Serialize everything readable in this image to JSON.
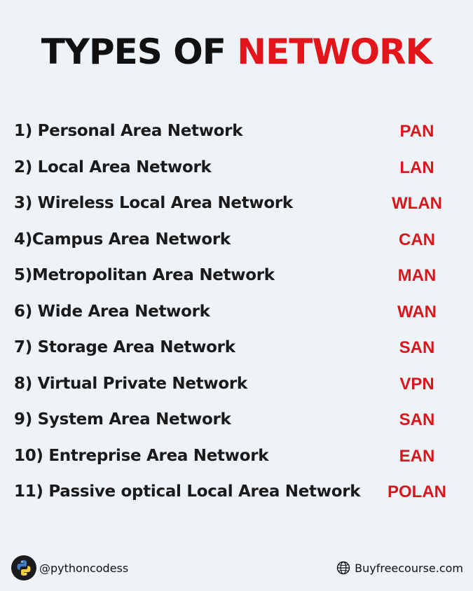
{
  "title": {
    "part1": "TYPES OF ",
    "part2": "NETWORK"
  },
  "networks": [
    {
      "name": "1) Personal Area Network",
      "abbr": "PAN"
    },
    {
      "name": "2) Local Area Network",
      "abbr": "LAN"
    },
    {
      "name": "3) Wireless Local Area Network",
      "abbr": "WLAN"
    },
    {
      "name": "4)Campus Area Network",
      "abbr": "CAN"
    },
    {
      "name": "5)Metropolitan Area Network",
      "abbr": "MAN"
    },
    {
      "name": "6) Wide Area Network",
      "abbr": "WAN"
    },
    {
      "name": "7) Storage Area Network",
      "abbr": "SAN"
    },
    {
      "name": "8) Virtual Private Network",
      "abbr": "VPN"
    },
    {
      "name": "9) System Area Network",
      "abbr": "SAN"
    },
    {
      "name": "10) Entreprise Area Network",
      "abbr": "EAN"
    },
    {
      "name": "11) Passive optical Local Area Network",
      "abbr": "POLAN"
    }
  ],
  "footer": {
    "handle": "@pythoncodess",
    "logo_icon": "python-logo-icon",
    "website": "Buyfreecourse.com",
    "website_icon": "globe-icon"
  },
  "colors": {
    "accent_red": "#e3151b",
    "background": "#eef3f7",
    "text": "#111111"
  }
}
